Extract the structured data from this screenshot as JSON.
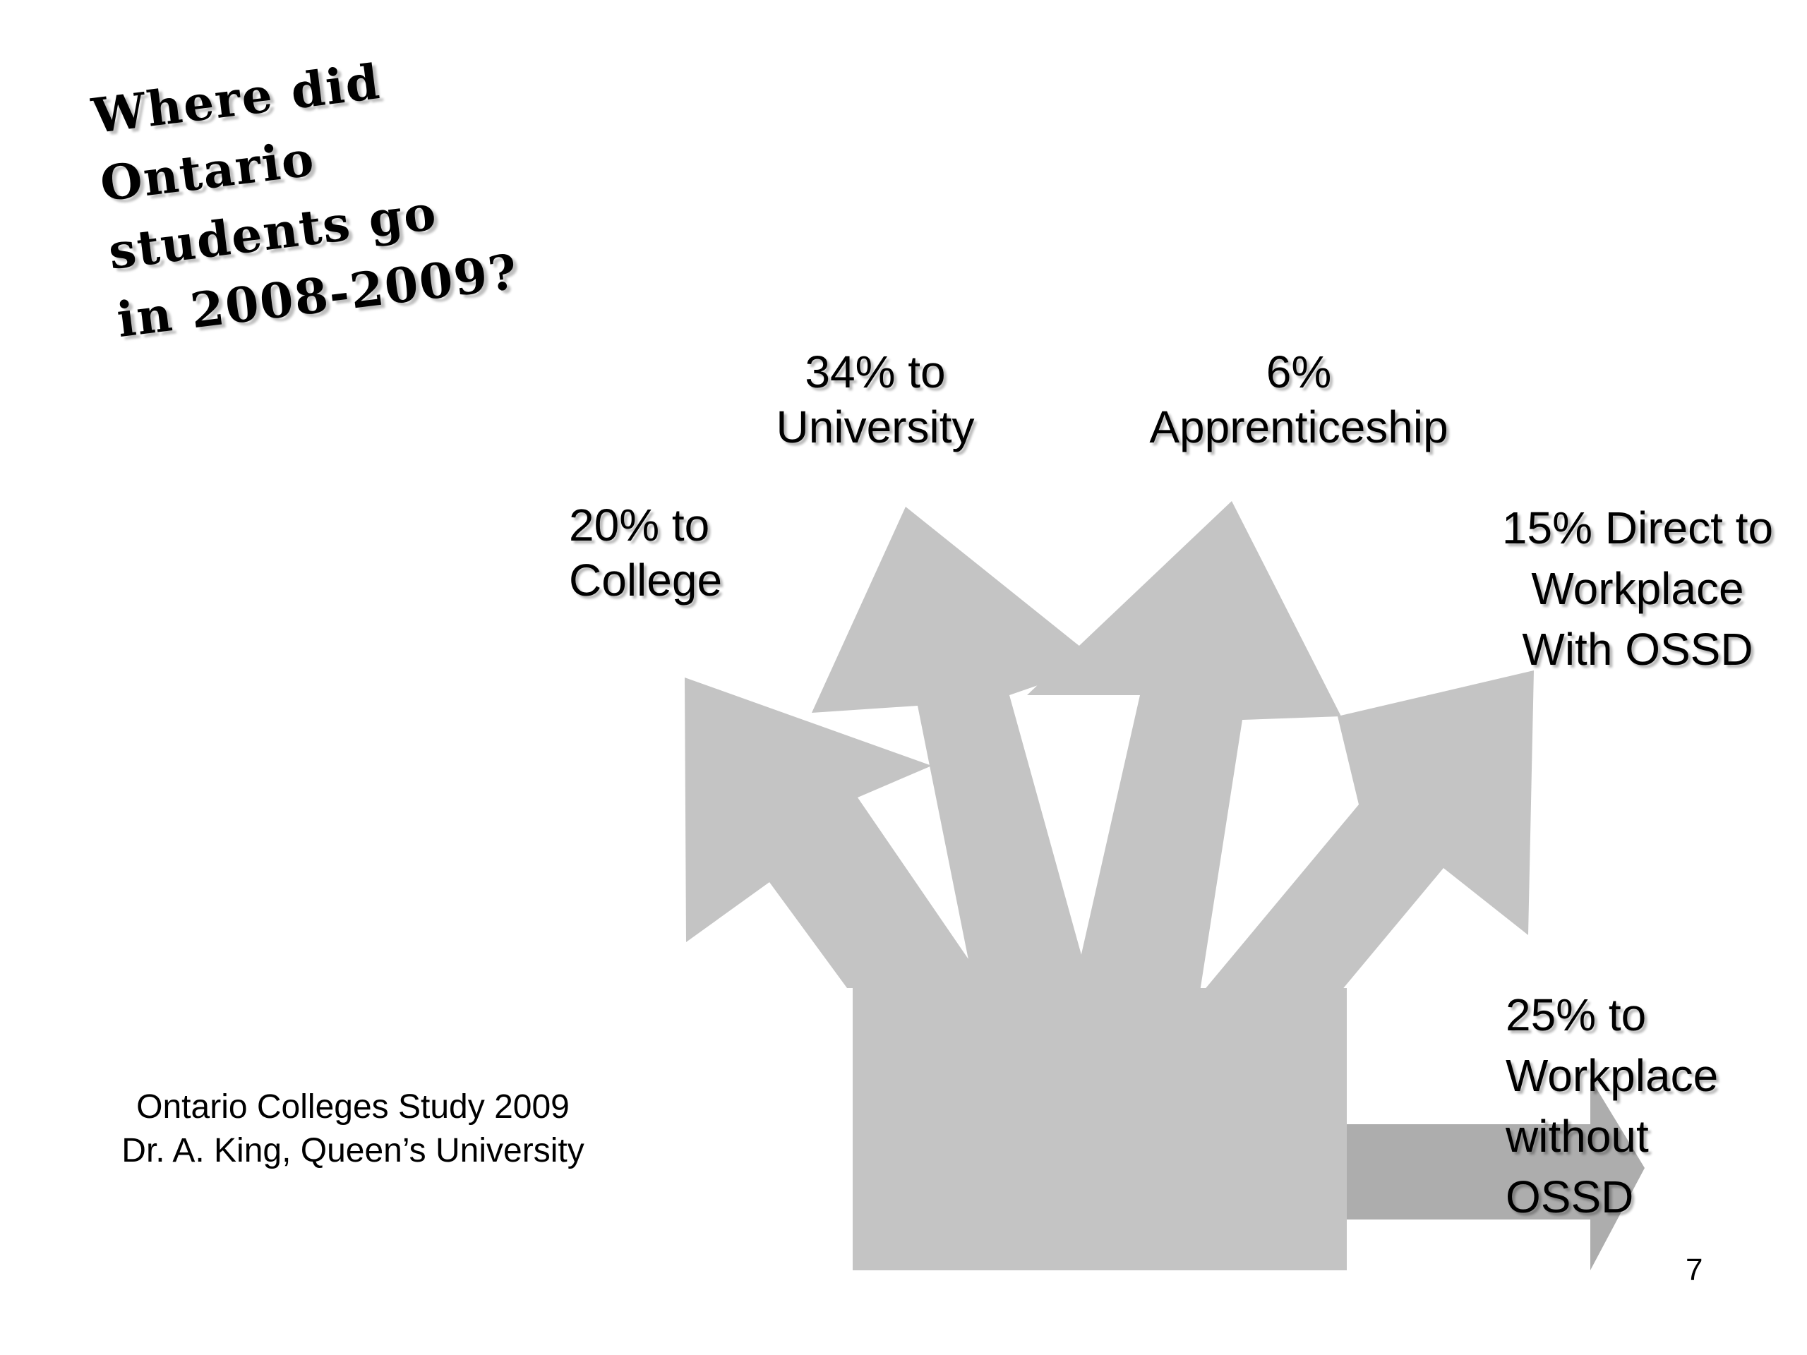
{
  "slide": {
    "title_lines": [
      "Where did",
      "Ontario",
      "students go",
      "in 2008-2009?"
    ],
    "page_number": "7"
  },
  "destinations": {
    "university": {
      "lines": [
        "34% to",
        "University"
      ],
      "percent": 34
    },
    "apprenticeship": {
      "lines": [
        "6%",
        "Apprenticeship"
      ],
      "percent": 6
    },
    "college": {
      "lines": [
        "20% to",
        "College"
      ],
      "percent": 20
    },
    "workplace_with_ossd": {
      "lines": [
        "15% Direct to",
        "Workplace",
        "With OSSD"
      ],
      "percent": 15
    },
    "workplace_without_ossd": {
      "lines": [
        "25% to",
        "Workplace",
        "without",
        "OSSD"
      ],
      "percent": 25
    }
  },
  "source": {
    "lines": [
      "Ontario Colleges Study 2009",
      "Dr. A. King, Queen’s University"
    ]
  },
  "colors": {
    "arrow_fill": "#c4c4c4",
    "side_arrow_fill": "#adadad",
    "background": "#ffffff",
    "text": "#000000"
  }
}
